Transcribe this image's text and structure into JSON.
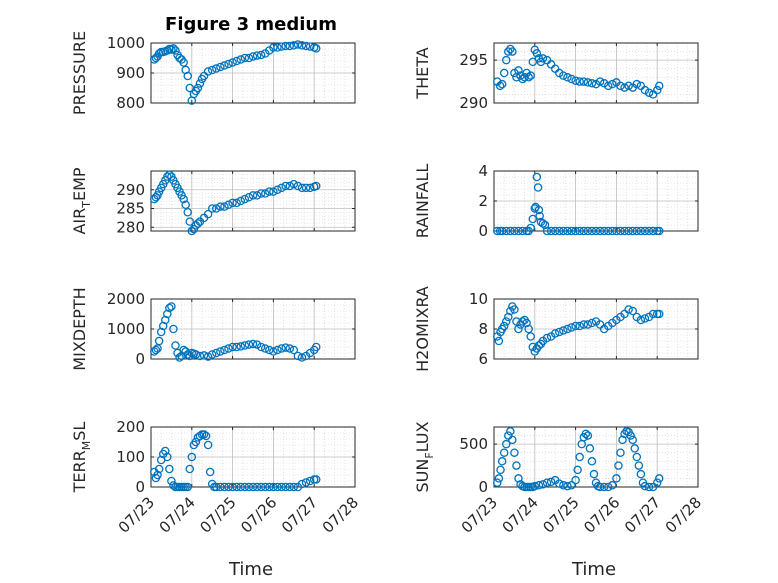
{
  "figure": {
    "title": "Figure 3 medium",
    "time_label": "Time"
  },
  "colors": {
    "marker": "#0072BD",
    "grid": "#d0d0d0",
    "axis": "#262626"
  },
  "chart_data": [
    {
      "type": "scatter",
      "ylabel": "PRESSURE",
      "ylim": [
        800,
        1000
      ],
      "yticks": [
        800,
        900,
        1000
      ],
      "xticks": [],
      "xlim": [
        "07/23",
        "07/28"
      ],
      "grid": true,
      "x": [
        0.08,
        0.12,
        0.16,
        0.2,
        0.25,
        0.3,
        0.35,
        0.4,
        0.45,
        0.5,
        0.55,
        0.6,
        0.65,
        0.7,
        0.75,
        0.8,
        0.85,
        0.9,
        0.95,
        1.0,
        1.05,
        1.1,
        1.15,
        1.2,
        1.25,
        1.3,
        1.4,
        1.5,
        1.6,
        1.7,
        1.8,
        1.9,
        2.0,
        2.1,
        2.2,
        2.3,
        2.4,
        2.5,
        2.6,
        2.7,
        2.8,
        2.9,
        3.0,
        3.1,
        3.2,
        3.3,
        3.4,
        3.5,
        3.6,
        3.7,
        3.8,
        3.9,
        4.0,
        4.05
      ],
      "y": [
        945,
        950,
        955,
        965,
        970,
        970,
        972,
        975,
        980,
        978,
        982,
        975,
        960,
        950,
        945,
        935,
        910,
        890,
        850,
        808,
        830,
        840,
        850,
        865,
        880,
        890,
        905,
        910,
        915,
        920,
        925,
        930,
        935,
        940,
        945,
        950,
        950,
        955,
        958,
        960,
        965,
        975,
        985,
        985,
        988,
        990,
        990,
        992,
        995,
        992,
        990,
        988,
        985,
        982
      ]
    },
    {
      "type": "scatter",
      "ylabel": "THETA",
      "ylim": [
        290,
        297
      ],
      "yticks": [
        290,
        295
      ],
      "xticks": [],
      "xlim": [
        "07/23",
        "07/28"
      ],
      "grid": true,
      "x": [
        0.08,
        0.15,
        0.2,
        0.25,
        0.3,
        0.35,
        0.4,
        0.45,
        0.5,
        0.55,
        0.6,
        0.65,
        0.7,
        0.75,
        0.8,
        0.85,
        0.9,
        0.95,
        1.0,
        1.05,
        1.1,
        1.15,
        1.2,
        1.3,
        1.4,
        1.5,
        1.6,
        1.7,
        1.8,
        1.9,
        2.0,
        2.1,
        2.2,
        2.3,
        2.4,
        2.5,
        2.6,
        2.7,
        2.8,
        2.9,
        3.0,
        3.1,
        3.2,
        3.3,
        3.4,
        3.5,
        3.6,
        3.7,
        3.8,
        3.9,
        4.0,
        4.05
      ],
      "y": [
        292.5,
        292.0,
        292.2,
        293.5,
        295.0,
        296.0,
        296.3,
        296.0,
        293.5,
        293.0,
        293.8,
        293.2,
        292.8,
        293.0,
        293.5,
        293.0,
        293.2,
        294.8,
        296.2,
        295.8,
        295.2,
        294.8,
        295.2,
        295.0,
        294.5,
        294.0,
        293.5,
        293.2,
        293.0,
        292.8,
        292.6,
        292.5,
        292.5,
        292.4,
        292.3,
        292.2,
        292.5,
        292.3,
        292.0,
        292.2,
        292.4,
        292.0,
        291.8,
        292.0,
        291.8,
        292.2,
        292.0,
        291.5,
        291.2,
        291.0,
        291.5,
        292.0
      ]
    },
    {
      "type": "scatter",
      "ylabel": "AIR_TEMP",
      "ylim": [
        279,
        295
      ],
      "yticks": [
        280,
        285,
        290
      ],
      "xticks": [],
      "xlim": [
        "07/23",
        "07/28"
      ],
      "grid": true,
      "x": [
        0.08,
        0.12,
        0.16,
        0.2,
        0.25,
        0.3,
        0.35,
        0.4,
        0.45,
        0.5,
        0.55,
        0.6,
        0.65,
        0.7,
        0.75,
        0.8,
        0.85,
        0.9,
        0.95,
        1.0,
        1.05,
        1.1,
        1.15,
        1.2,
        1.3,
        1.4,
        1.5,
        1.6,
        1.7,
        1.8,
        1.9,
        2.0,
        2.1,
        2.2,
        2.3,
        2.4,
        2.5,
        2.6,
        2.7,
        2.8,
        2.9,
        3.0,
        3.1,
        3.2,
        3.3,
        3.4,
        3.5,
        3.6,
        3.7,
        3.8,
        3.9,
        4.0,
        4.05
      ],
      "y": [
        287.5,
        288.0,
        288.5,
        289.5,
        290.5,
        291.5,
        292.5,
        293.5,
        294.0,
        293.5,
        292.5,
        291.5,
        290.5,
        289.5,
        288.5,
        287.5,
        286.0,
        284.0,
        281.5,
        279.0,
        279.5,
        280.5,
        281.0,
        281.5,
        282.5,
        283.5,
        285.0,
        285.0,
        285.5,
        285.5,
        286.0,
        286.5,
        286.5,
        287.0,
        287.5,
        288.0,
        288.5,
        288.5,
        289.0,
        289.0,
        289.5,
        289.5,
        290.0,
        290.5,
        291.0,
        291.0,
        291.5,
        291.0,
        290.5,
        290.5,
        290.5,
        290.8,
        291.0
      ]
    },
    {
      "type": "scatter",
      "ylabel": "RAINFALL",
      "ylim": [
        0,
        4
      ],
      "yticks": [
        0,
        2,
        4
      ],
      "xticks": [],
      "xlim": [
        "07/23",
        "07/28"
      ],
      "grid": true,
      "x": [
        0.08,
        0.15,
        0.2,
        0.3,
        0.4,
        0.5,
        0.6,
        0.7,
        0.8,
        0.85,
        0.9,
        0.95,
        1.0,
        1.02,
        1.05,
        1.08,
        1.1,
        1.12,
        1.15,
        1.2,
        1.25,
        1.3,
        1.4,
        1.5,
        1.6,
        1.7,
        1.8,
        1.9,
        2.0,
        2.1,
        2.2,
        2.3,
        2.4,
        2.5,
        2.6,
        2.7,
        2.8,
        2.9,
        3.0,
        3.1,
        3.2,
        3.3,
        3.4,
        3.5,
        3.6,
        3.7,
        3.8,
        3.9,
        4.0,
        4.05
      ],
      "y": [
        0,
        0,
        0,
        0,
        0,
        0,
        0,
        0,
        0,
        0,
        0.2,
        0.8,
        1.5,
        1.6,
        3.6,
        2.9,
        1.4,
        1.0,
        0.6,
        0.5,
        0.4,
        0,
        0,
        0,
        0,
        0,
        0,
        0,
        0,
        0,
        0,
        0,
        0,
        0,
        0,
        0,
        0,
        0,
        0,
        0,
        0,
        0,
        0,
        0,
        0,
        0,
        0,
        0,
        0,
        0
      ]
    },
    {
      "type": "scatter",
      "ylabel": "MIXDEPTH",
      "ylim": [
        0,
        2000
      ],
      "yticks": [
        0,
        1000,
        2000
      ],
      "xticks": [],
      "xlim": [
        "07/23",
        "07/28"
      ],
      "grid": true,
      "x": [
        0.08,
        0.12,
        0.16,
        0.2,
        0.25,
        0.3,
        0.35,
        0.4,
        0.45,
        0.5,
        0.55,
        0.6,
        0.65,
        0.7,
        0.75,
        0.8,
        0.85,
        0.9,
        0.95,
        1.0,
        1.05,
        1.1,
        1.2,
        1.3,
        1.4,
        1.5,
        1.6,
        1.7,
        1.8,
        1.9,
        2.0,
        2.1,
        2.2,
        2.3,
        2.4,
        2.5,
        2.6,
        2.7,
        2.8,
        2.9,
        3.0,
        3.1,
        3.2,
        3.3,
        3.4,
        3.5,
        3.6,
        3.7,
        3.8,
        3.9,
        4.0,
        4.05
      ],
      "y": [
        250,
        300,
        350,
        600,
        900,
        1100,
        1300,
        1500,
        1700,
        1750,
        1000,
        450,
        200,
        50,
        100,
        300,
        250,
        150,
        100,
        200,
        180,
        150,
        100,
        120,
        80,
        150,
        200,
        250,
        300,
        350,
        400,
        400,
        420,
        450,
        480,
        500,
        480,
        400,
        350,
        300,
        250,
        300,
        350,
        380,
        350,
        300,
        100,
        50,
        100,
        200,
        300,
        400
      ]
    },
    {
      "type": "scatter",
      "ylabel": "H2OMIXRA",
      "ylim": [
        6,
        10
      ],
      "yticks": [
        6,
        8,
        10
      ],
      "xticks": [],
      "xlim": [
        "07/23",
        "07/28"
      ],
      "grid": true,
      "x": [
        0.08,
        0.12,
        0.16,
        0.2,
        0.25,
        0.3,
        0.35,
        0.4,
        0.45,
        0.5,
        0.55,
        0.6,
        0.65,
        0.7,
        0.75,
        0.8,
        0.85,
        0.9,
        0.95,
        1.0,
        1.05,
        1.1,
        1.15,
        1.2,
        1.3,
        1.4,
        1.5,
        1.6,
        1.7,
        1.8,
        1.9,
        2.0,
        2.1,
        2.2,
        2.3,
        2.4,
        2.5,
        2.6,
        2.7,
        2.8,
        2.9,
        3.0,
        3.1,
        3.2,
        3.3,
        3.4,
        3.5,
        3.6,
        3.7,
        3.8,
        3.9,
        4.0,
        4.05
      ],
      "y": [
        7.5,
        7.2,
        7.8,
        8.0,
        8.2,
        8.5,
        8.8,
        9.2,
        9.5,
        9.3,
        8.5,
        8.0,
        8.3,
        8.5,
        8.6,
        8.4,
        8.0,
        7.5,
        6.8,
        6.5,
        6.7,
        6.9,
        7.0,
        7.2,
        7.4,
        7.5,
        7.7,
        7.8,
        7.9,
        8.0,
        8.1,
        8.2,
        8.2,
        8.3,
        8.3,
        8.4,
        8.5,
        8.3,
        8.0,
        8.2,
        8.4,
        8.6,
        8.8,
        9.0,
        9.3,
        9.2,
        8.8,
        8.6,
        8.7,
        8.8,
        9.0,
        9.0,
        9.0
      ]
    },
    {
      "type": "scatter",
      "ylabel": "TERR_MSL",
      "ylim": [
        0,
        200
      ],
      "yticks": [
        0,
        100,
        200
      ],
      "xticks": [
        "07/23",
        "07/24",
        "07/25",
        "07/26",
        "07/27",
        "07/28"
      ],
      "xlim": [
        "07/23",
        "07/28"
      ],
      "grid": true,
      "x": [
        0.08,
        0.12,
        0.16,
        0.2,
        0.25,
        0.3,
        0.35,
        0.4,
        0.45,
        0.5,
        0.55,
        0.6,
        0.65,
        0.7,
        0.75,
        0.8,
        0.85,
        0.9,
        0.95,
        1.0,
        1.05,
        1.1,
        1.15,
        1.2,
        1.25,
        1.3,
        1.35,
        1.4,
        1.45,
        1.5,
        1.55,
        1.6,
        1.7,
        1.8,
        1.9,
        2.0,
        2.1,
        2.2,
        2.3,
        2.4,
        2.5,
        2.6,
        2.7,
        2.8,
        2.9,
        3.0,
        3.1,
        3.2,
        3.3,
        3.4,
        3.5,
        3.6,
        3.7,
        3.8,
        3.9,
        4.0,
        4.05
      ],
      "y": [
        50,
        30,
        40,
        60,
        90,
        110,
        120,
        100,
        60,
        20,
        5,
        0,
        0,
        0,
        0,
        0,
        0,
        0,
        60,
        100,
        140,
        150,
        165,
        170,
        175,
        175,
        170,
        140,
        50,
        10,
        0,
        0,
        0,
        0,
        0,
        0,
        0,
        0,
        0,
        0,
        0,
        0,
        0,
        0,
        0,
        0,
        0,
        0,
        0,
        0,
        0,
        0,
        10,
        15,
        20,
        25,
        25
      ]
    },
    {
      "type": "scatter",
      "ylabel": "SUN_FLUX",
      "ylim": [
        0,
        700
      ],
      "yticks": [
        0,
        500
      ],
      "xticks": [
        "07/23",
        "07/24",
        "07/25",
        "07/26",
        "07/27",
        "07/28"
      ],
      "xlim": [
        "07/23",
        "07/28"
      ],
      "grid": true,
      "x": [
        0.08,
        0.12,
        0.16,
        0.2,
        0.25,
        0.3,
        0.35,
        0.4,
        0.45,
        0.5,
        0.55,
        0.6,
        0.65,
        0.7,
        0.75,
        0.8,
        0.85,
        0.9,
        0.95,
        1.0,
        1.1,
        1.2,
        1.3,
        1.4,
        1.5,
        1.6,
        1.7,
        1.8,
        1.9,
        2.0,
        2.05,
        2.1,
        2.15,
        2.2,
        2.25,
        2.3,
        2.35,
        2.4,
        2.45,
        2.5,
        2.55,
        2.6,
        2.7,
        2.8,
        2.9,
        3.0,
        3.05,
        3.1,
        3.15,
        3.2,
        3.25,
        3.3,
        3.35,
        3.4,
        3.45,
        3.5,
        3.55,
        3.6,
        3.65,
        3.7,
        3.8,
        3.9,
        4.0,
        4.05
      ],
      "y": [
        50,
        100,
        200,
        300,
        400,
        500,
        600,
        650,
        550,
        400,
        250,
        100,
        30,
        10,
        0,
        0,
        0,
        0,
        0,
        10,
        20,
        30,
        50,
        60,
        80,
        40,
        20,
        10,
        20,
        80,
        200,
        350,
        500,
        580,
        620,
        600,
        450,
        300,
        150,
        50,
        10,
        0,
        0,
        0,
        20,
        100,
        250,
        400,
        550,
        620,
        650,
        640,
        600,
        550,
        450,
        350,
        250,
        150,
        50,
        10,
        0,
        0,
        50,
        100
      ]
    }
  ]
}
